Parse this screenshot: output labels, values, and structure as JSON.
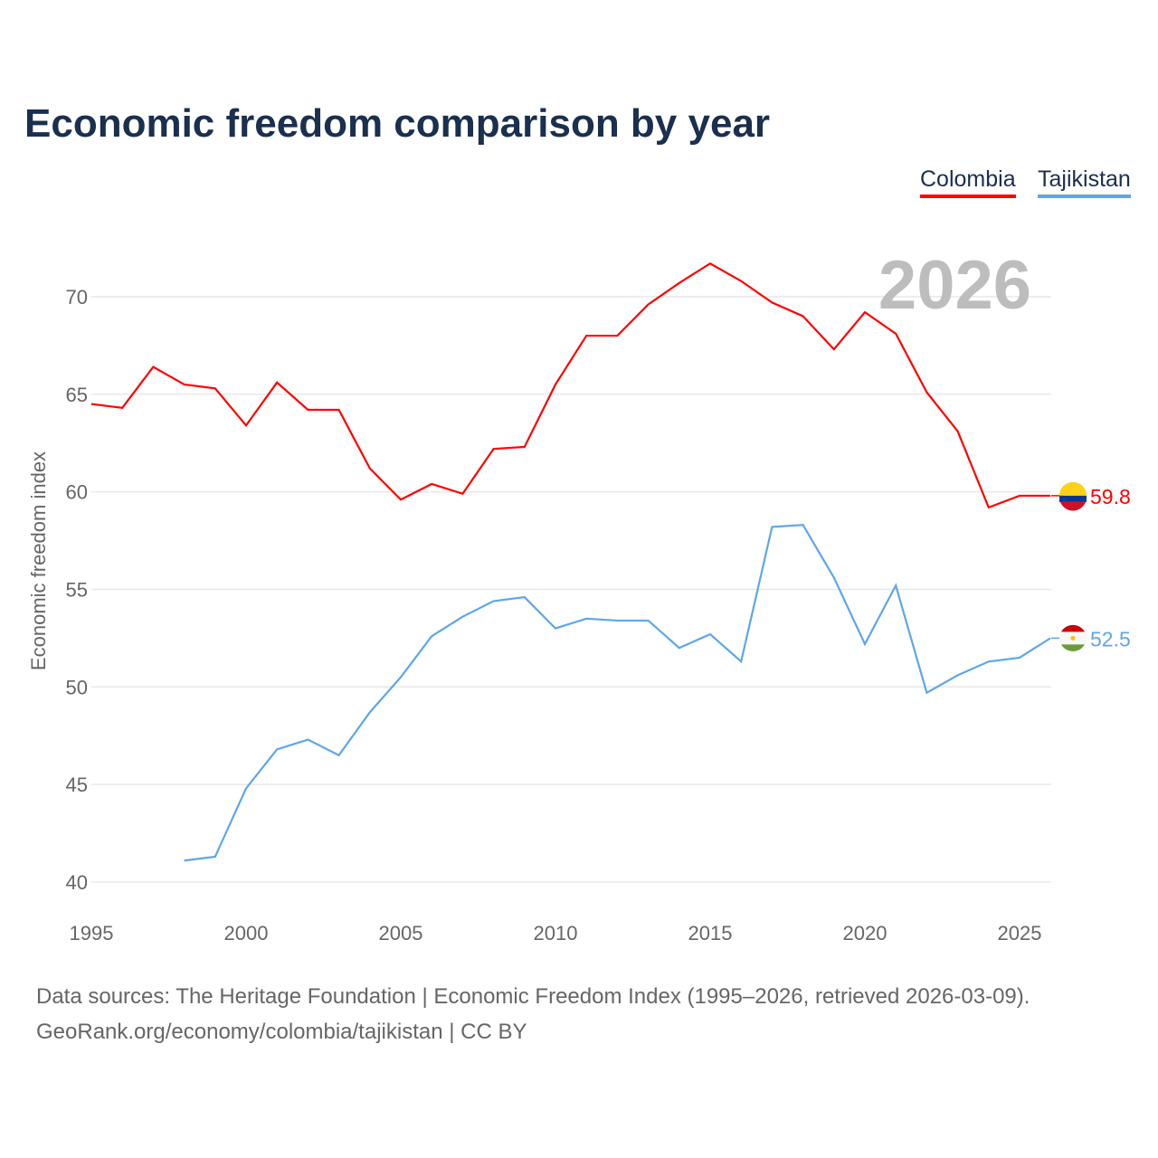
{
  "chart_data": {
    "type": "line",
    "title": "Economic freedom comparison by year",
    "xlabel": "",
    "ylabel": "Economic freedom index",
    "xlim": [
      1995,
      2026
    ],
    "ylim": [
      40,
      72
    ],
    "xticks": [
      1995,
      2000,
      2005,
      2010,
      2015,
      2020,
      2025
    ],
    "yticks": [
      40,
      45,
      50,
      55,
      60,
      65,
      70
    ],
    "grid": true,
    "legend_placement": "top-right",
    "year_label": "2026",
    "series": [
      {
        "name": "Colombia",
        "color": "#ff0000",
        "end_label": "59.8",
        "x": [
          1995,
          1996,
          1997,
          1998,
          1999,
          2000,
          2001,
          2002,
          2003,
          2004,
          2005,
          2006,
          2007,
          2008,
          2009,
          2010,
          2011,
          2012,
          2013,
          2014,
          2015,
          2016,
          2017,
          2018,
          2019,
          2020,
          2021,
          2022,
          2023,
          2024,
          2025,
          2026
        ],
        "values": [
          64.5,
          64.3,
          66.4,
          65.5,
          65.3,
          63.4,
          65.6,
          64.2,
          64.2,
          61.2,
          59.6,
          60.4,
          59.9,
          62.2,
          62.3,
          65.5,
          68.0,
          68.0,
          69.6,
          70.7,
          71.7,
          70.8,
          69.7,
          69.0,
          67.3,
          69.2,
          68.1,
          65.1,
          63.1,
          59.2,
          59.8,
          59.8
        ]
      },
      {
        "name": "Tajikistan",
        "color": "#5ea6ea",
        "end_label": "52.5",
        "x": [
          1998,
          1999,
          2000,
          2001,
          2002,
          2003,
          2004,
          2005,
          2006,
          2007,
          2008,
          2009,
          2010,
          2011,
          2012,
          2013,
          2014,
          2015,
          2016,
          2017,
          2018,
          2019,
          2020,
          2021,
          2022,
          2023,
          2024,
          2025,
          2026
        ],
        "values": [
          41.1,
          41.3,
          44.8,
          46.8,
          47.3,
          46.5,
          48.7,
          50.5,
          52.6,
          53.6,
          54.4,
          54.6,
          53.0,
          53.5,
          53.4,
          53.4,
          52.0,
          52.7,
          51.3,
          58.2,
          58.3,
          55.6,
          52.2,
          55.2,
          49.7,
          50.6,
          51.3,
          51.5,
          52.5
        ]
      }
    ]
  },
  "footer": {
    "source": "Data sources: The Heritage Foundation | Economic Freedom Index (1995–2026, retrieved 2026-03-09).",
    "credit": "GeoRank.org/economy/colombia/tajikistan | CC BY"
  }
}
